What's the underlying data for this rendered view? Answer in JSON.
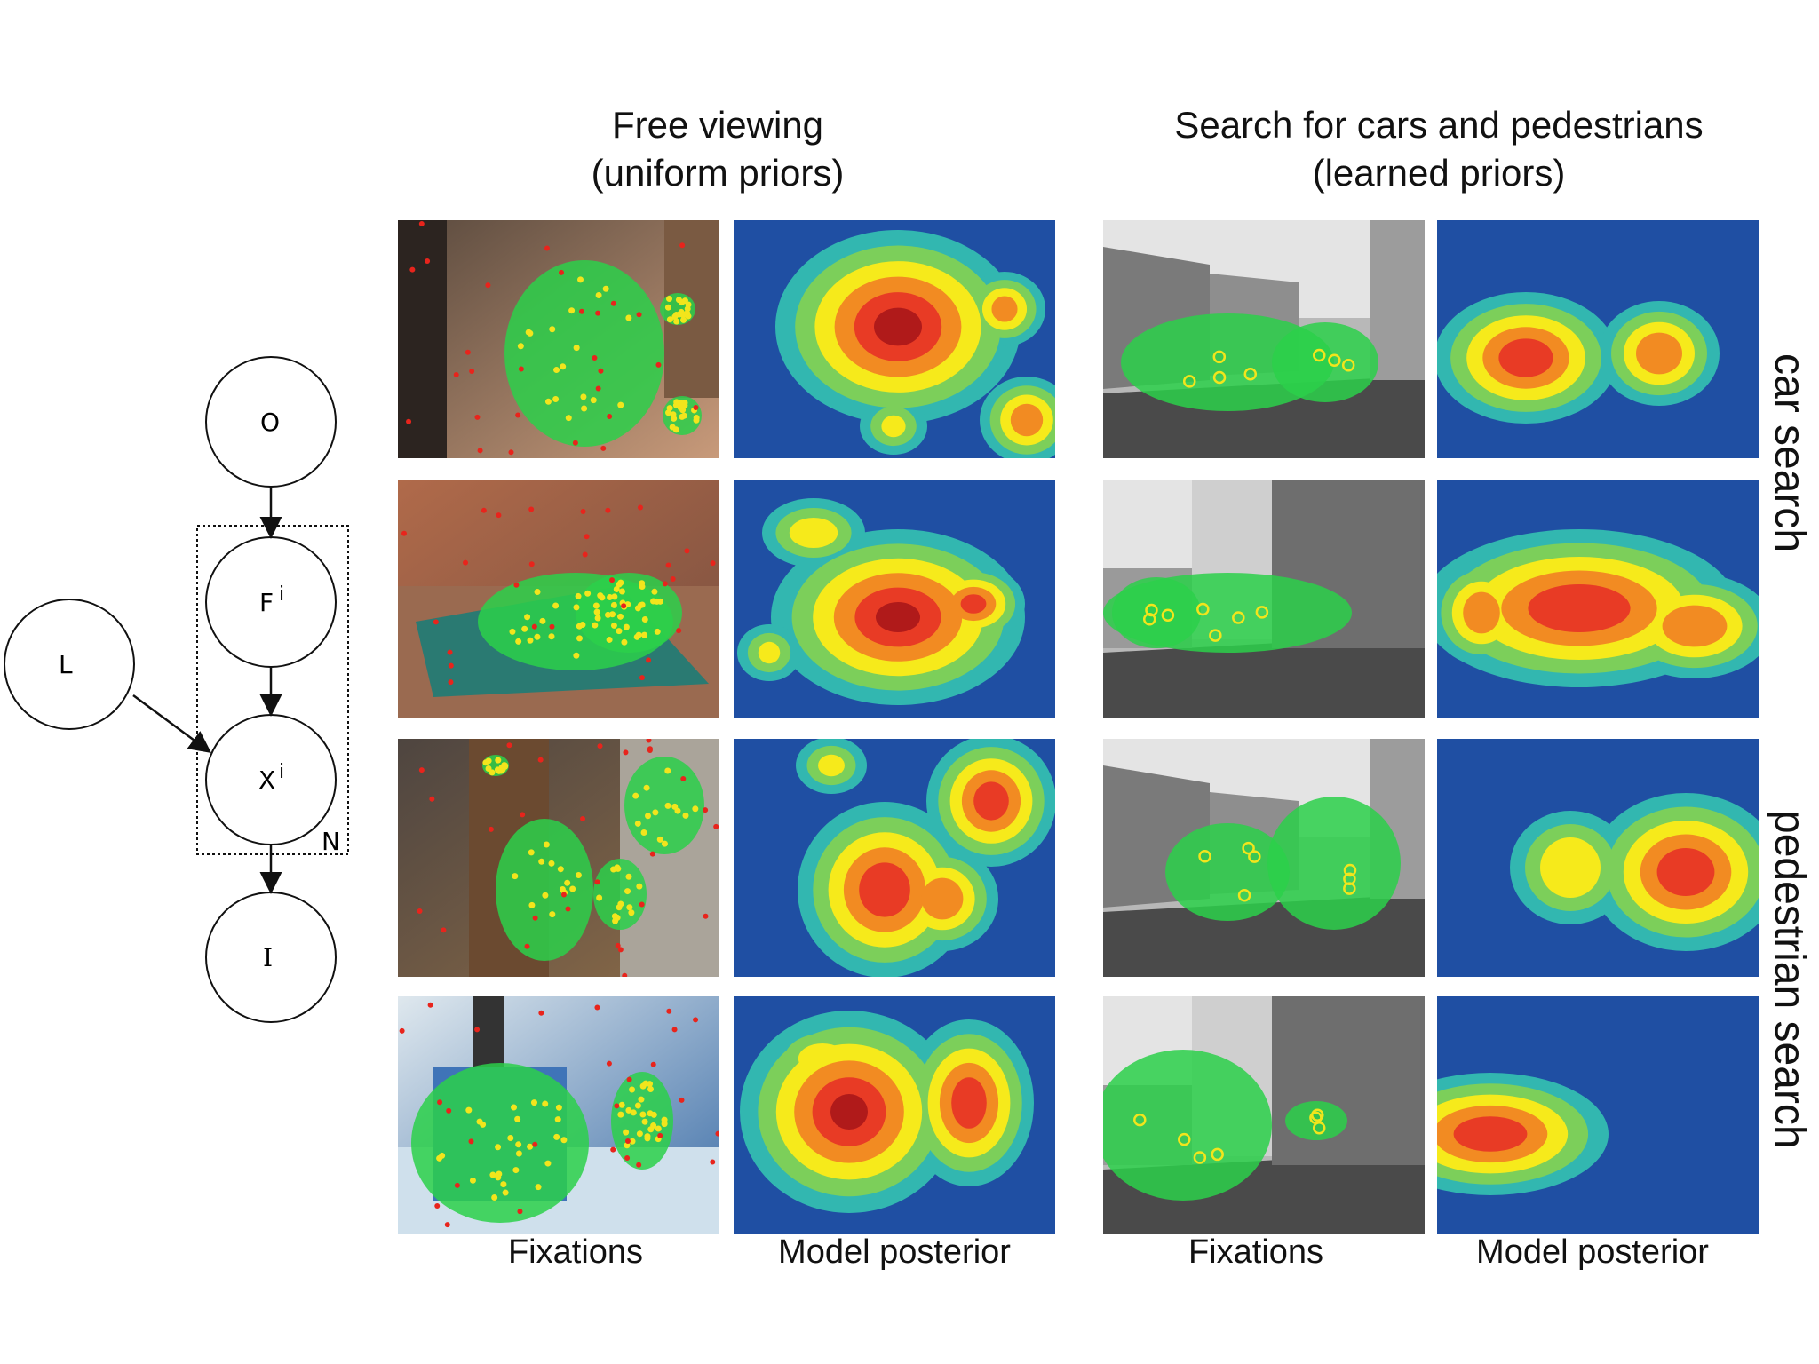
{
  "figure": {
    "left_header": {
      "line1": "Free viewing",
      "line2": "(uniform priors)"
    },
    "right_header": {
      "line1": "Search for cars and pedestrians",
      "line2": "(learned priors)"
    },
    "column_labels": [
      "Fixations",
      "Model posterior",
      "Fixations",
      "Model posterior"
    ],
    "row_labels": {
      "car": "car search",
      "pedestrian": "pedestrian search"
    },
    "graph": {
      "nodes": {
        "O": "O",
        "F": "F",
        "F_sup": "i",
        "X": "X",
        "X_sup": "i",
        "I": "I",
        "L": "L"
      },
      "plate_label": "N"
    }
  },
  "colors": {
    "heat_background": "#1f4fa3",
    "heat_cyan": "#32b7b0",
    "heat_green": "#7ccf5a",
    "heat_yellow": "#f6ea1b",
    "heat_orange": "#f28b22",
    "heat_red": "#e83b25",
    "heat_darkred": "#b01a1a",
    "fixation_overlay": "#2bd04a",
    "fixation_dot_yellow": "#f2e51c",
    "fixation_dot_red": "#e8241c"
  }
}
